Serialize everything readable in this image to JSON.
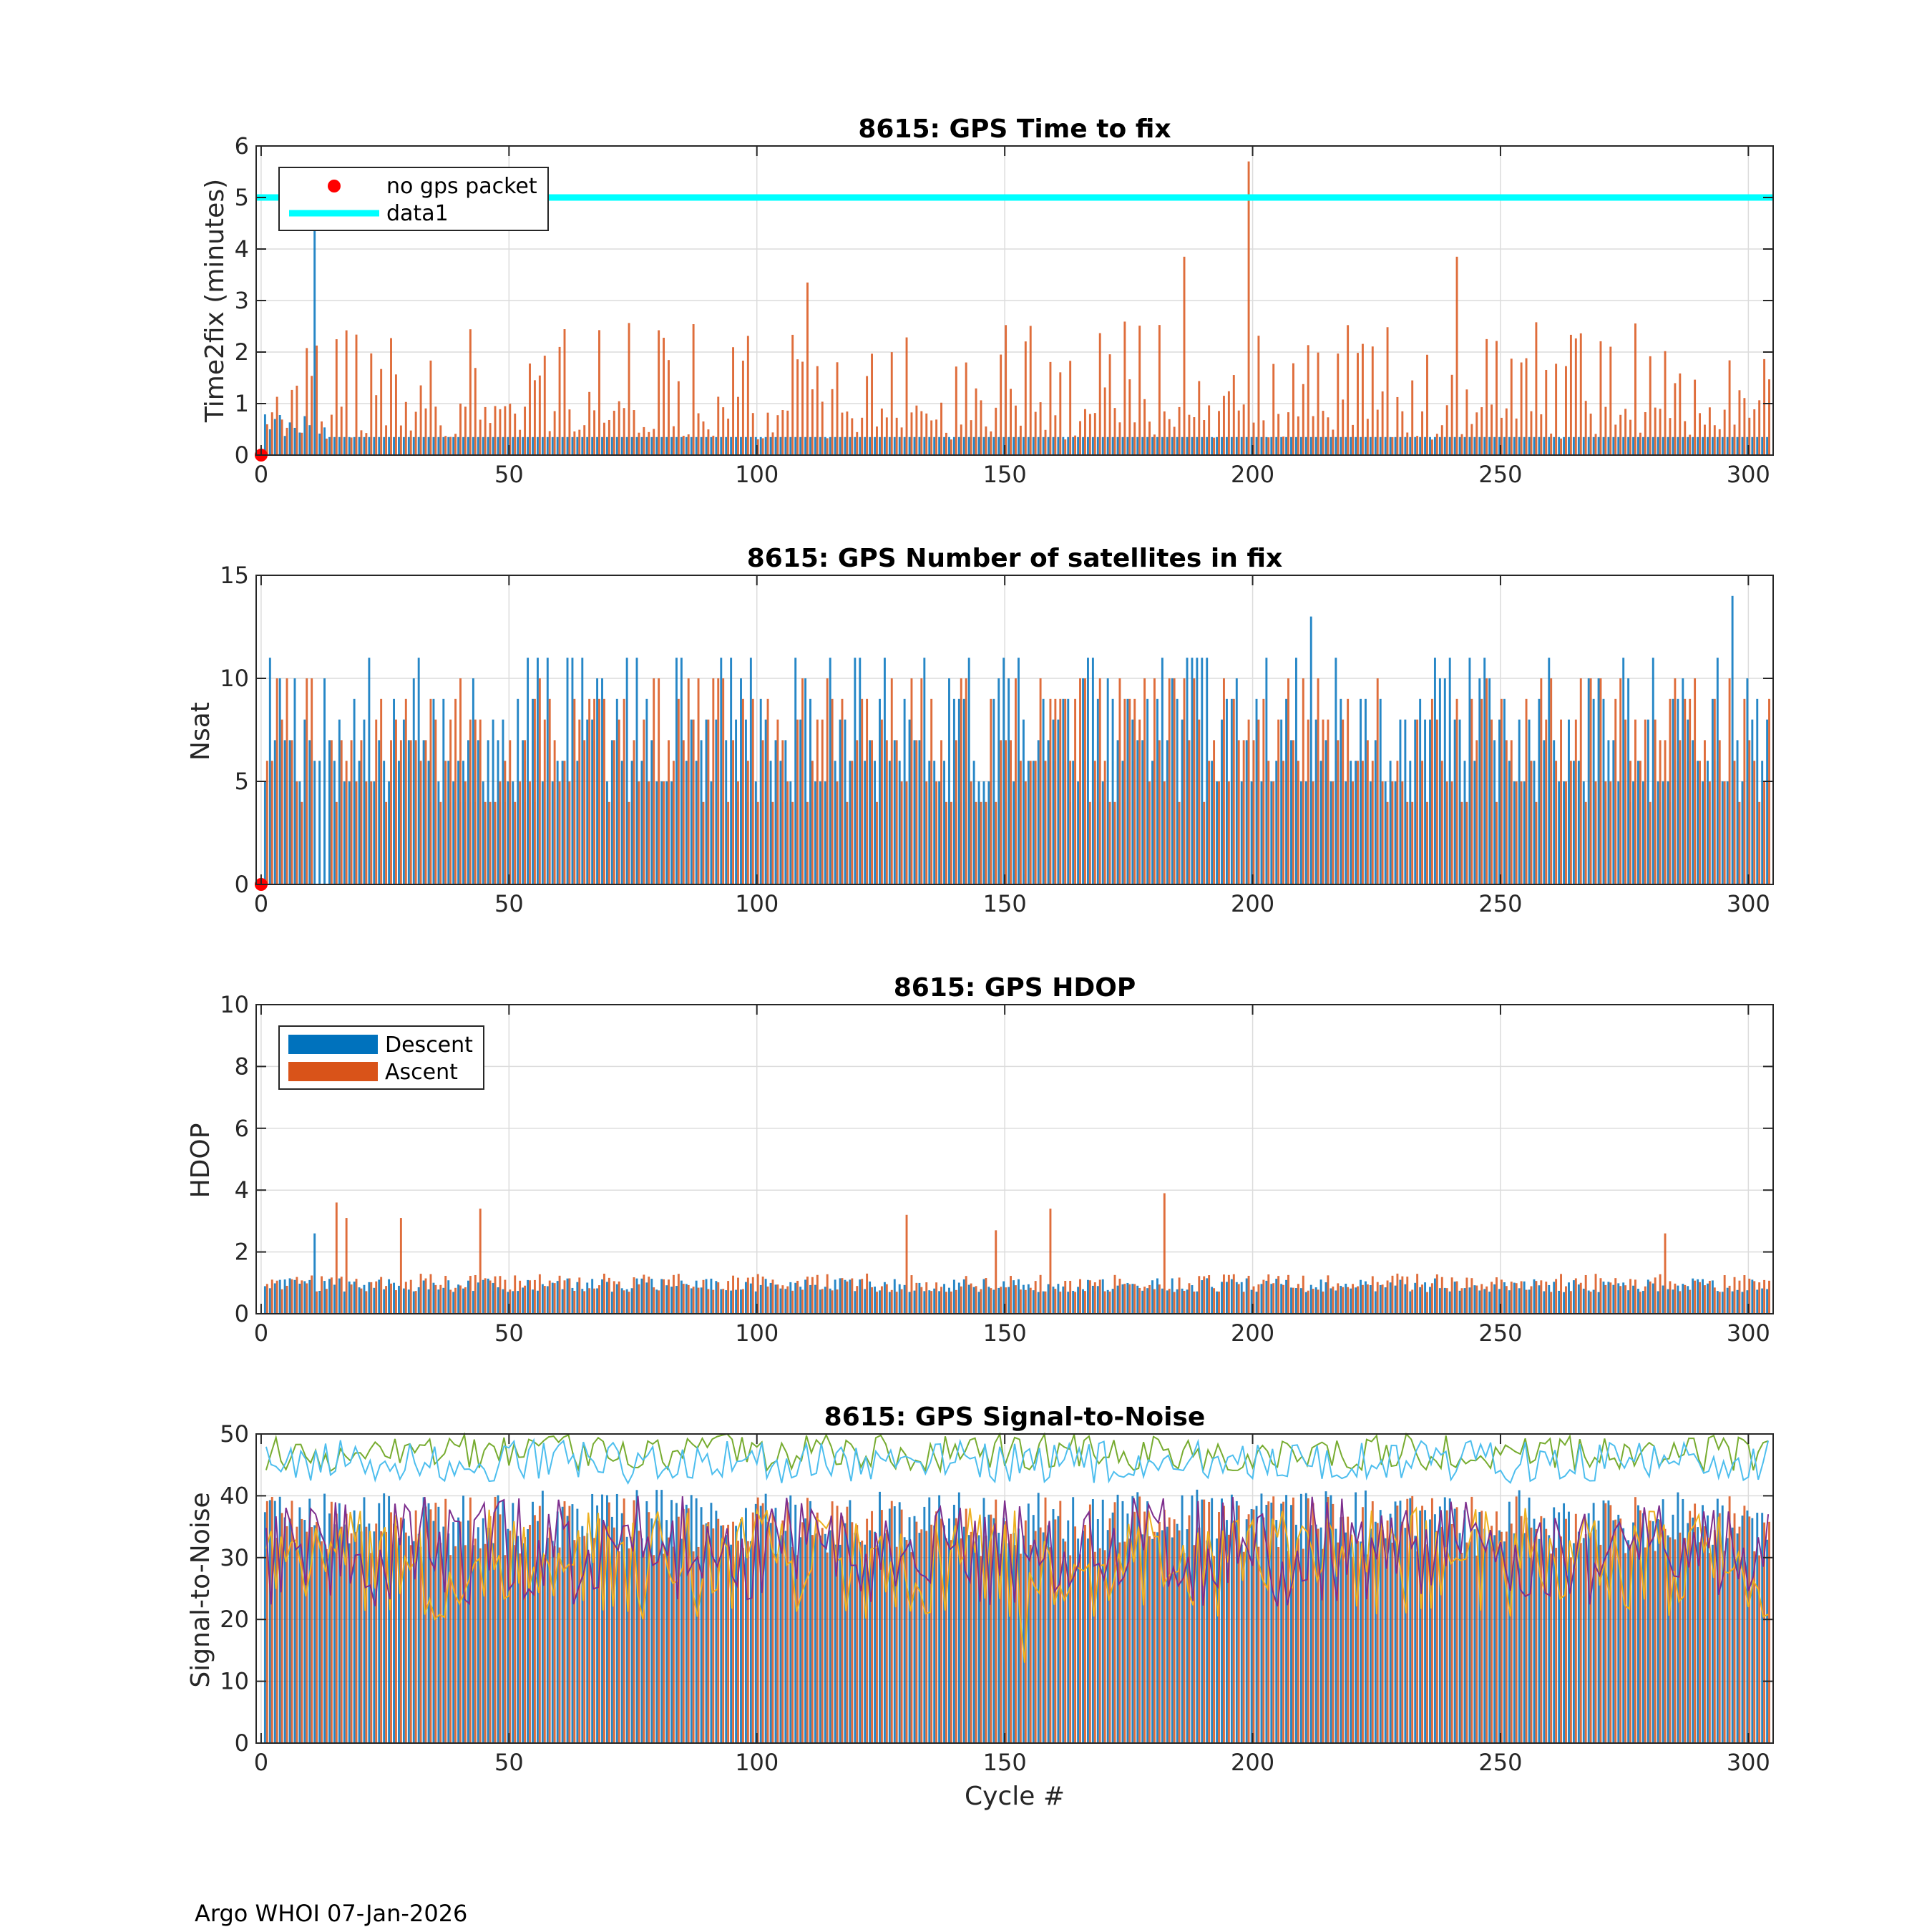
{
  "footer": "Argo WHOI 07-Jan-2026",
  "colors": {
    "descent": "#0072BD",
    "ascent": "#D95319",
    "data1": "#00FFFF",
    "no_gps": "#FF0000",
    "snr_lines": [
      "#77AC30",
      "#4DBEEE",
      "#EDB120",
      "#7E2F8E"
    ]
  },
  "chart_data": [
    {
      "id": "time2fix",
      "type": "bar",
      "title": "8615: GPS Time to fix",
      "xlabel": "",
      "ylabel": "Time2fix (minutes)",
      "xlim": [
        -1,
        305
      ],
      "ylim": [
        0,
        6
      ],
      "xticks": [
        "0",
        "50",
        "100",
        "150",
        "200",
        "250",
        "300"
      ],
      "yticks": [
        "0",
        "1",
        "2",
        "3",
        "4",
        "5",
        "6"
      ],
      "grid": true,
      "legend": {
        "placement": "top-left",
        "entries": [
          "no gps packet",
          "data1"
        ]
      },
      "series_summary": [
        {
          "name": "Descent",
          "typical": 0.35,
          "notable": [
            {
              "x": 11,
              "y": 4.5
            }
          ]
        },
        {
          "name": "Ascent",
          "typical_range": [
            0.3,
            2.5
          ],
          "notable": [
            {
              "x": 110,
              "y": 3.35
            },
            {
              "x": 186,
              "y": 3.85
            },
            {
              "x": 199,
              "y": 5.7
            },
            {
              "x": 241,
              "y": 3.85
            }
          ]
        }
      ],
      "reference_line": {
        "name": "data1",
        "y": 5
      },
      "markers": [
        {
          "name": "no gps packet",
          "x": 0,
          "y": 0
        }
      ]
    },
    {
      "id": "nsat",
      "type": "bar",
      "title": "8615: GPS Number of satellites in fix",
      "xlabel": "",
      "ylabel": "Nsat",
      "xlim": [
        -1,
        305
      ],
      "ylim": [
        0,
        15
      ],
      "xticks": [
        "0",
        "50",
        "100",
        "150",
        "200",
        "250",
        "300"
      ],
      "yticks": [
        "0",
        "5",
        "10",
        "15"
      ],
      "grid": true,
      "series_summary": [
        {
          "name": "Descent",
          "typical_range": [
            5,
            12
          ],
          "notable": [
            {
              "x": 212,
              "y": 13
            },
            {
              "x": 297,
              "y": 14
            }
          ]
        },
        {
          "name": "Ascent",
          "typical_range": [
            4,
            12
          ]
        }
      ],
      "markers": [
        {
          "name": "no gps packet",
          "x": 0,
          "y": 0
        }
      ]
    },
    {
      "id": "hdop",
      "type": "bar",
      "title": "8615: GPS HDOP",
      "xlabel": "",
      "ylabel": "HDOP",
      "xlim": [
        -1,
        305
      ],
      "ylim": [
        0,
        10
      ],
      "xticks": [
        "0",
        "50",
        "100",
        "150",
        "200",
        "250",
        "300"
      ],
      "yticks": [
        "0",
        "2",
        "4",
        "6",
        "8",
        "10"
      ],
      "grid": true,
      "legend": {
        "placement": "top-left",
        "entries": [
          "Descent",
          "Ascent"
        ]
      },
      "series_summary": [
        {
          "name": "Descent",
          "typical_range": [
            0.7,
            1.2
          ],
          "notable": [
            {
              "x": 11,
              "y": 2.6
            }
          ]
        },
        {
          "name": "Ascent",
          "typical_range": [
            0.7,
            1.5
          ],
          "notable": [
            {
              "x": 15,
              "y": 3.6
            },
            {
              "x": 17,
              "y": 3.1
            },
            {
              "x": 28,
              "y": 3.1
            },
            {
              "x": 44,
              "y": 3.4
            },
            {
              "x": 130,
              "y": 3.2
            },
            {
              "x": 159,
              "y": 3.4
            },
            {
              "x": 182,
              "y": 3.9
            },
            {
              "x": 148,
              "y": 2.7
            },
            {
              "x": 283,
              "y": 2.6
            }
          ]
        }
      ]
    },
    {
      "id": "snr",
      "type": "bar",
      "title": "8615: GPS Signal-to-Noise",
      "xlabel": "Cycle #",
      "ylabel": "Signal-to-Noise",
      "xlim": [
        -1,
        305
      ],
      "ylim": [
        0,
        50
      ],
      "xticks": [
        "0",
        "50",
        "100",
        "150",
        "200",
        "250",
        "300"
      ],
      "yticks": [
        "0",
        "10",
        "20",
        "30",
        "40",
        "50"
      ],
      "grid": true,
      "series_summary": [
        {
          "name": "Bars",
          "typical_range": [
            32,
            42
          ]
        },
        {
          "name": "Max SNR (green)",
          "typical_range": [
            44,
            50
          ]
        },
        {
          "name": "Max SNR (light blue)",
          "typical_range": [
            42,
            49
          ]
        },
        {
          "name": "Mean SNR (yellow)",
          "typical_range": [
            20,
            38
          ],
          "notable": [
            {
              "x": 154,
              "y": 13
            }
          ]
        },
        {
          "name": "Mean SNR (purple)",
          "typical_range": [
            22,
            40
          ]
        }
      ]
    }
  ]
}
